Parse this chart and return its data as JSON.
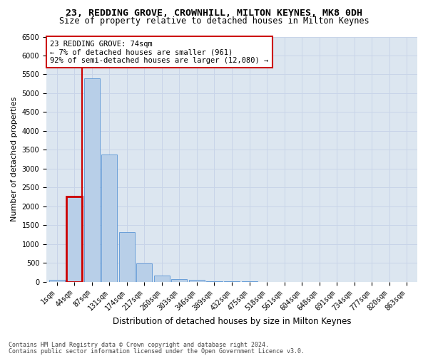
{
  "title1": "23, REDDING GROVE, CROWNHILL, MILTON KEYNES, MK8 0DH",
  "title2": "Size of property relative to detached houses in Milton Keynes",
  "xlabel": "Distribution of detached houses by size in Milton Keynes",
  "ylabel": "Number of detached properties",
  "footer1": "Contains HM Land Registry data © Crown copyright and database right 2024.",
  "footer2": "Contains public sector information licensed under the Open Government Licence v3.0.",
  "categories": [
    "1sqm",
    "44sqm",
    "87sqm",
    "131sqm",
    "174sqm",
    "217sqm",
    "260sqm",
    "303sqm",
    "346sqm",
    "389sqm",
    "432sqm",
    "475sqm",
    "518sqm",
    "561sqm",
    "604sqm",
    "648sqm",
    "691sqm",
    "734sqm",
    "777sqm",
    "820sqm",
    "863sqm"
  ],
  "values": [
    60,
    2270,
    5400,
    3380,
    1310,
    480,
    160,
    75,
    50,
    25,
    15,
    10,
    5,
    4,
    3,
    2,
    1,
    1,
    0,
    0,
    0
  ],
  "bar_color": "#b8cfe8",
  "bar_edge_color": "#6a9fd8",
  "highlight_bar_index": 1,
  "highlight_edge_color": "#cc0000",
  "annotation_box_text": "23 REDDING GROVE: 74sqm\n← 7% of detached houses are smaller (961)\n92% of semi-detached houses are larger (12,080) →",
  "annotation_box_color": "#ffffff",
  "annotation_box_edge_color": "#cc0000",
  "ylim": [
    0,
    6500
  ],
  "yticks": [
    0,
    500,
    1000,
    1500,
    2000,
    2500,
    3000,
    3500,
    4000,
    4500,
    5000,
    5500,
    6000,
    6500
  ],
  "grid_color": "#c8d4e8",
  "bg_color": "#dce6f0",
  "fig_bg_color": "#ffffff",
  "title1_fontsize": 9.5,
  "title2_fontsize": 8.5,
  "xlabel_fontsize": 8.5,
  "ylabel_fontsize": 8,
  "tick_fontsize": 7,
  "annotation_fontsize": 7.5,
  "footer_fontsize": 6
}
